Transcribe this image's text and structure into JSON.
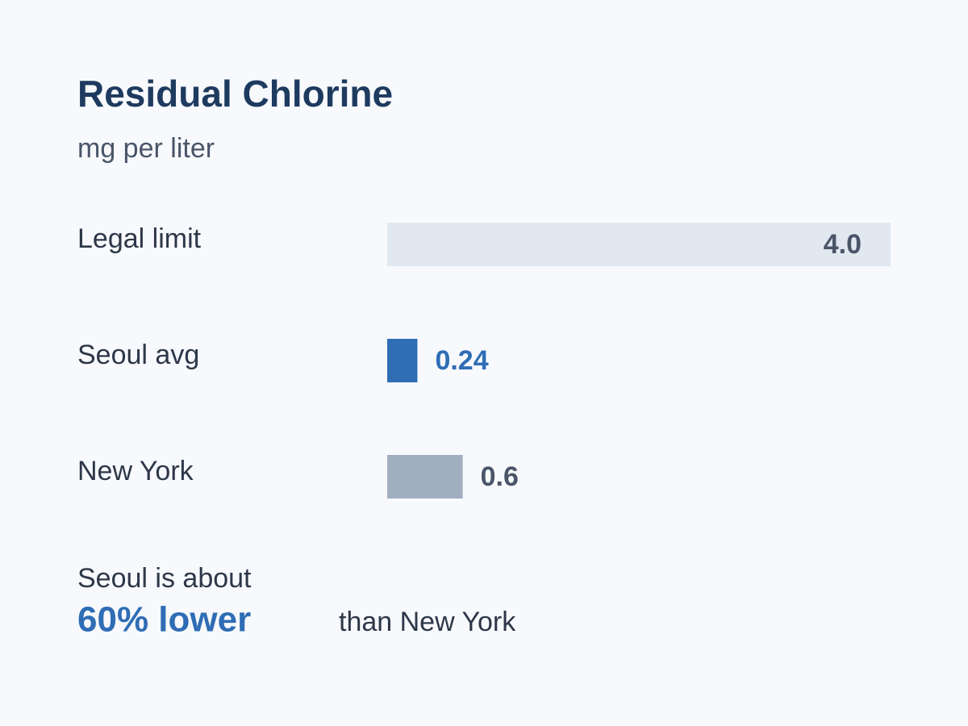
{
  "chart_data": {
    "type": "bar",
    "orientation": "horizontal",
    "title": "Residual Chlorine",
    "subtitle": "mg per liter",
    "categories": [
      "Legal limit",
      "Seoul avg",
      "New York"
    ],
    "values": [
      4.0,
      0.24,
      0.6
    ],
    "value_labels": [
      "4.0",
      "0.24",
      "0.6"
    ],
    "colors": [
      "#e2e8f0",
      "#2f6db5",
      "#a0aec0"
    ],
    "xlim": [
      0,
      4
    ],
    "annotation": {
      "lead": "Seoul is about",
      "highlight": "60% lower",
      "tail": "than New York"
    }
  }
}
